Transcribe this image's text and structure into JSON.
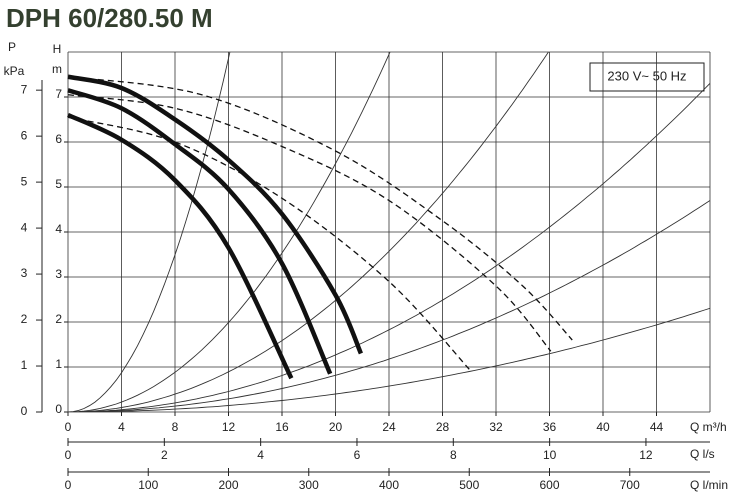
{
  "chart_data": {
    "type": "line",
    "title": "DPH 60/280.50 M",
    "annotation": "230 V~ 50 Hz",
    "xlabel": "Q m³/h",
    "xlim": [
      0,
      48
    ],
    "xticks": [
      0,
      4,
      8,
      12,
      16,
      20,
      24,
      28,
      32,
      36,
      40,
      44
    ],
    "x2label": "Q l/s",
    "x2lim": [
      0,
      13.33
    ],
    "x2ticks": [
      0,
      2,
      4,
      6,
      8,
      10,
      12
    ],
    "x3label": "Q l/min",
    "x3lim": [
      0,
      800
    ],
    "x3ticks": [
      0,
      100,
      200,
      300,
      400,
      500,
      600,
      700
    ],
    "ylabel": "H",
    "yunit": "m",
    "ylim": [
      0,
      8
    ],
    "yticks": [
      0,
      1,
      2,
      3,
      4,
      5,
      6,
      7
    ],
    "y2label": "P",
    "y2unit": "kPa",
    "y2lim": [
      0,
      7.83
    ],
    "y2ticks": [
      0,
      1,
      2,
      3,
      4,
      5,
      6,
      7
    ],
    "grid": true,
    "series": [
      {
        "style": "solid",
        "color": "#111111",
        "x": [
          0,
          4,
          8,
          12,
          16.7
        ],
        "values": [
          6.6,
          6.05,
          5.15,
          3.65,
          0.75
        ]
      },
      {
        "style": "solid",
        "color": "#111111",
        "x": [
          0,
          4,
          8,
          12,
          16,
          19.6
        ],
        "values": [
          7.15,
          6.75,
          5.95,
          4.95,
          3.3,
          0.85
        ]
      },
      {
        "style": "solid",
        "color": "#111111",
        "x": [
          0,
          4,
          8,
          12,
          16,
          20,
          21.9
        ],
        "values": [
          7.45,
          7.2,
          6.5,
          5.6,
          4.4,
          2.6,
          1.3
        ]
      },
      {
        "style": "dashed",
        "color": "#111111",
        "x": [
          0,
          8,
          16,
          24,
          30
        ],
        "values": [
          6.55,
          6.0,
          4.75,
          2.9,
          0.95
        ]
      },
      {
        "style": "dashed",
        "color": "#111111",
        "x": [
          0,
          8,
          16,
          24,
          32,
          36.1
        ],
        "values": [
          7.05,
          6.75,
          5.9,
          4.7,
          2.8,
          1.35
        ]
      },
      {
        "style": "dashed",
        "color": "#111111",
        "x": [
          0,
          10,
          20,
          28,
          34,
          37.7
        ],
        "values": [
          7.45,
          7.05,
          5.8,
          4.25,
          2.8,
          1.6
        ]
      }
    ],
    "system_curves": [
      0.0546,
      0.0138,
      0.0062,
      0.00317,
      0.00204,
      0.001
    ]
  }
}
